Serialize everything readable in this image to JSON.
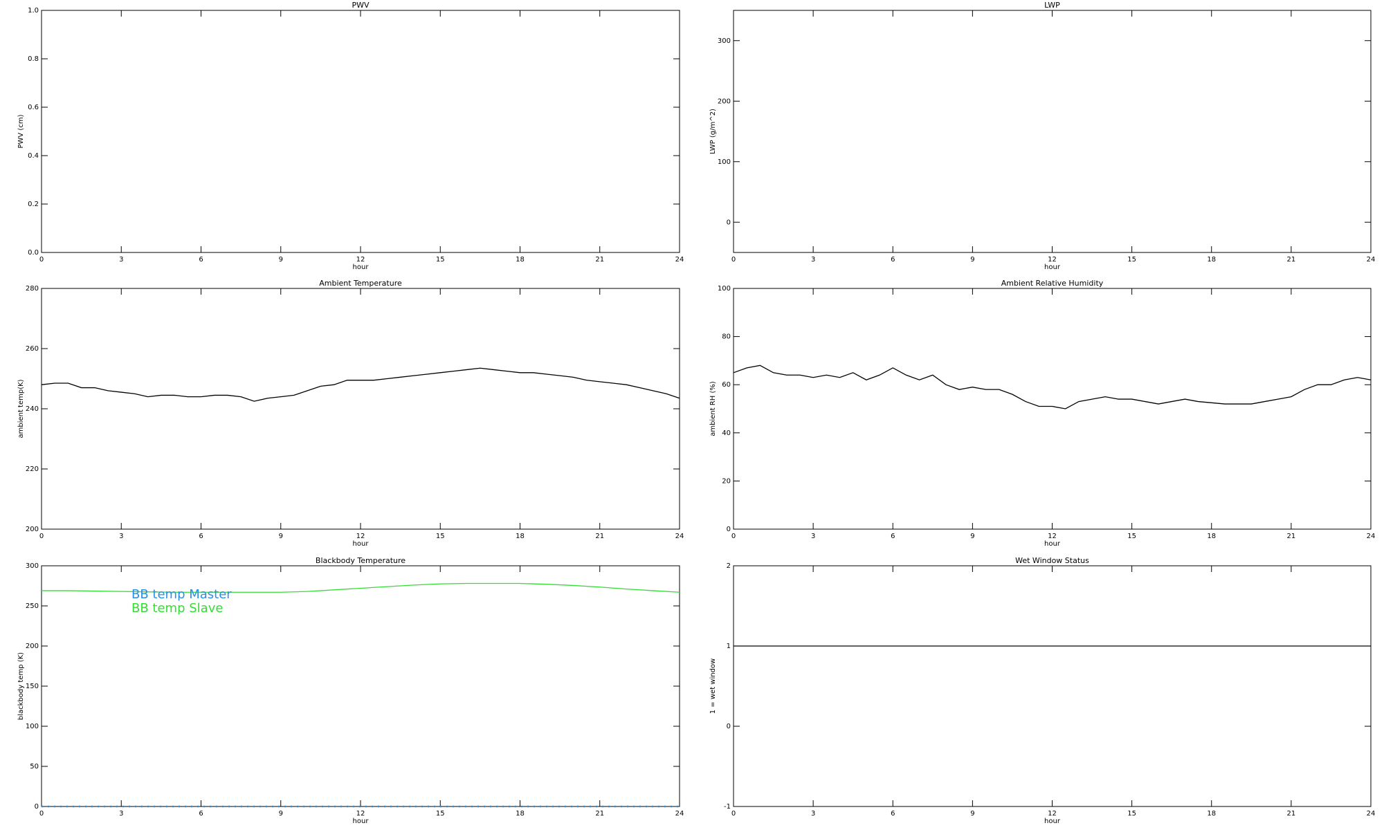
{
  "chart_data": [
    {
      "type": "line",
      "title": "PWV",
      "xlabel": "hour",
      "ylabel": "PWV (cm)",
      "xlim": [
        0,
        24
      ],
      "xticks": [
        0,
        3,
        6,
        9,
        12,
        15,
        18,
        21,
        24
      ],
      "ylim": [
        0,
        1
      ],
      "yticks": [
        {
          "value": 0,
          "label": "0.0"
        },
        0.2,
        0.4,
        0.6,
        0.8,
        {
          "value": 1,
          "label": "1.0"
        }
      ]
    },
    {
      "type": "line",
      "title": "LWP",
      "xlabel": "hour",
      "ylabel": "LWP (g/m^2)",
      "xlim": [
        0,
        24
      ],
      "xticks": [
        0,
        3,
        6,
        9,
        12,
        15,
        18,
        21,
        24
      ],
      "ylim": [
        -50,
        350
      ],
      "yticks": [
        0,
        100,
        200,
        300
      ]
    },
    {
      "type": "line",
      "title": "Ambient Temperature",
      "xlabel": "hour",
      "ylabel": "ambient temp(K)",
      "xlim": [
        0,
        24
      ],
      "xticks": [
        0,
        3,
        6,
        9,
        12,
        15,
        18,
        21,
        24
      ],
      "ylim": [
        200,
        280
      ],
      "yticks": [
        200,
        220,
        240,
        260,
        280
      ],
      "x": [
        0,
        0.5,
        1,
        1.5,
        2,
        2.5,
        3,
        3.5,
        4,
        4.5,
        5,
        5.5,
        6,
        6.5,
        7,
        7.5,
        8,
        8.5,
        9,
        9.5,
        10,
        10.5,
        11,
        11.5,
        12,
        12.5,
        13,
        13.5,
        14,
        14.5,
        15,
        15.5,
        16,
        16.5,
        17,
        17.5,
        18,
        18.5,
        19,
        19.5,
        20,
        20.5,
        21,
        21.5,
        22,
        22.5,
        23,
        23.5,
        24
      ],
      "series": [
        {
          "color": "#000000",
          "values": [
            248,
            248.5,
            248.5,
            247,
            247,
            246,
            245.5,
            245,
            244,
            244.5,
            244.5,
            244,
            244,
            244.5,
            244.5,
            244,
            242.5,
            243.5,
            244,
            244.5,
            246,
            247.5,
            248,
            249.5,
            249.5,
            249.5,
            250,
            250.5,
            251,
            251.5,
            252,
            252.5,
            253,
            253.5,
            253,
            252.5,
            252,
            252,
            251.5,
            251,
            250.5,
            249.5,
            249,
            248.5,
            248,
            247,
            246,
            245,
            243.5
          ]
        }
      ]
    },
    {
      "type": "line",
      "title": "Ambient Relative Humidity",
      "xlabel": "hour",
      "ylabel": "ambient RH (%)",
      "xlim": [
        0,
        24
      ],
      "xticks": [
        0,
        3,
        6,
        9,
        12,
        15,
        18,
        21,
        24
      ],
      "ylim": [
        0,
        100
      ],
      "yticks": [
        0,
        20,
        40,
        60,
        80,
        100
      ],
      "x": [
        0,
        0.5,
        1,
        1.5,
        2,
        2.5,
        3,
        3.5,
        4,
        4.5,
        5,
        5.5,
        6,
        6.5,
        7,
        7.5,
        8,
        8.5,
        9,
        9.5,
        10,
        10.5,
        11,
        11.5,
        12,
        12.5,
        13,
        13.5,
        14,
        14.5,
        15,
        15.5,
        16,
        16.5,
        17,
        17.5,
        18,
        18.5,
        19,
        19.5,
        20,
        20.5,
        21,
        21.5,
        22,
        22.5,
        23,
        23.5,
        24
      ],
      "series": [
        {
          "color": "#000000",
          "values": [
            65,
            67,
            68,
            65,
            64,
            64,
            63,
            64,
            63,
            65,
            62,
            64,
            67,
            64,
            62,
            64,
            60,
            58,
            59,
            58,
            58,
            56,
            53,
            51,
            51,
            50,
            53,
            54,
            55,
            54,
            54,
            53,
            52,
            53,
            54,
            53,
            52.5,
            52,
            52,
            52,
            53,
            54,
            55,
            58,
            60,
            60,
            62,
            63,
            62
          ]
        }
      ]
    },
    {
      "type": "line",
      "title": "Blackbody Temperature",
      "xlabel": "hour",
      "ylabel": "blackbody temp (K)",
      "xlim": [
        0,
        24
      ],
      "xticks": [
        0,
        3,
        6,
        9,
        12,
        15,
        18,
        21,
        24
      ],
      "ylim": [
        0,
        300
      ],
      "yticks": [
        0,
        50,
        100,
        150,
        200,
        250,
        300
      ],
      "legend": "upper left",
      "x": [
        0,
        1,
        2,
        3,
        4,
        5,
        6,
        7,
        8,
        9,
        10,
        11,
        12,
        13,
        14,
        15,
        16,
        17,
        18,
        19,
        20,
        21,
        22,
        23,
        24
      ],
      "series": [
        {
          "name": "BB temp Master",
          "color": "#2b8fe0",
          "values": [
            0,
            0,
            0,
            0,
            0,
            0,
            0,
            0,
            0,
            0,
            0,
            0,
            0,
            0,
            0,
            0,
            0,
            0,
            0,
            0,
            0,
            0,
            0,
            0,
            0
          ]
        },
        {
          "name": "BB temp Slave",
          "color": "#33dd33",
          "values": [
            269,
            269,
            268.5,
            268,
            267.5,
            267,
            267,
            267,
            267,
            267,
            268,
            270,
            272,
            274,
            276,
            277.5,
            278,
            278,
            278,
            277,
            275.5,
            273.5,
            271,
            269,
            267
          ]
        }
      ]
    },
    {
      "type": "line",
      "title": "Wet Window Status",
      "xlabel": "hour",
      "ylabel": "1 = wet window",
      "xlim": [
        0,
        24
      ],
      "xticks": [
        0,
        3,
        6,
        9,
        12,
        15,
        18,
        21,
        24
      ],
      "ylim": [
        -1,
        2
      ],
      "yticks": [
        -1,
        0,
        1,
        2
      ],
      "x": [
        0,
        24
      ],
      "series": [
        {
          "color": "#000000",
          "values": [
            1,
            1
          ]
        }
      ]
    }
  ]
}
